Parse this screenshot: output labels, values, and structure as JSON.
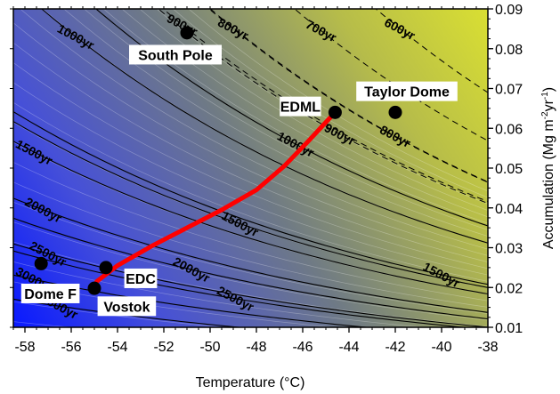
{
  "chart_data": {
    "type": "contour",
    "xlabel": "Temperature (°C)",
    "ylabel_parts": [
      "Accumulation (Mg m",
      "-2",
      "yr",
      "-1",
      ")"
    ],
    "xlim": [
      -58.5,
      -38
    ],
    "ylim": [
      0.01,
      0.09
    ],
    "x_ticks": [
      -58,
      -56,
      -54,
      -52,
      -50,
      -48,
      -46,
      -44,
      -42,
      -40,
      -38
    ],
    "x_tick_labels": [
      "-58",
      "-56",
      "-54",
      "-52",
      "-50",
      "-48",
      "-46",
      "-44",
      "-42",
      "-40",
      "-38"
    ],
    "y_ticks": [
      0.01,
      0.02,
      0.03,
      0.04,
      0.05,
      0.06,
      0.07,
      0.08,
      0.09
    ],
    "y_tick_labels": [
      "0.01",
      "0.02",
      "0.03",
      "0.04",
      "0.05",
      "0.06",
      "0.07",
      "0.08",
      "0.09"
    ],
    "background_gradient": {
      "low_color": "#0a1aff",
      "mid_color": "#6f7a85",
      "high_color": "#d8de33"
    },
    "contours": [
      {
        "label": "600yr",
        "style": "dashed",
        "label_at": [
          -41.8,
          0.085
        ]
      },
      {
        "label": "700yr",
        "style": "dashed",
        "label_at": [
          -45.2,
          0.0845
        ]
      },
      {
        "label": "800yr",
        "style": "dashed",
        "label_at": [
          -49.0,
          0.085
        ]
      },
      {
        "label": "800yr",
        "style": "dashed",
        "label_at": [
          -42.0,
          0.058
        ]
      },
      {
        "label": "900yr",
        "style": "dashed",
        "label_at": [
          -51.2,
          0.086
        ]
      },
      {
        "label": "900yr",
        "style": "dashed",
        "label_at": [
          -44.4,
          0.0585
        ]
      },
      {
        "label": "1000yr",
        "style": "solid",
        "label_at": [
          -55.8,
          0.083
        ]
      },
      {
        "label": "1000yr",
        "style": "solid",
        "label_at": [
          -46.3,
          0.056
        ]
      },
      {
        "label": "1500yr",
        "style": "solid",
        "label_at": [
          -57.6,
          0.054
        ]
      },
      {
        "label": "1500yr",
        "style": "solid",
        "label_at": [
          -48.7,
          0.036
        ]
      },
      {
        "label": "1500yr",
        "style": "solid",
        "label_at": [
          -40.0,
          0.0232
        ]
      },
      {
        "label": "2000yr",
        "style": "solid",
        "label_at": [
          -57.2,
          0.0395
        ]
      },
      {
        "label": "2000yr",
        "style": "solid",
        "label_at": [
          -50.8,
          0.0245
        ]
      },
      {
        "label": "2500yr",
        "style": "solid",
        "label_at": [
          -57.0,
          0.0285
        ]
      },
      {
        "label": "2500yr",
        "style": "solid",
        "label_at": [
          -48.9,
          0.0172
        ]
      },
      {
        "label": "3000yr",
        "style": "solid",
        "label_at": [
          -57.6,
          0.022
        ]
      },
      {
        "label": "4000yr",
        "style": "solid",
        "label_at": [
          -56.5,
          0.0153
        ]
      }
    ],
    "sites": [
      {
        "name": "South Pole",
        "x": -51.0,
        "y": 0.084,
        "label_at": [
          -51.5,
          0.0785
        ]
      },
      {
        "name": "EDML",
        "x": -44.6,
        "y": 0.064,
        "label_at": [
          -46.1,
          0.0655
        ]
      },
      {
        "name": "Taylor Dome",
        "x": -42.0,
        "y": 0.064,
        "label_at": [
          -41.5,
          0.0693
        ]
      },
      {
        "name": "EDC",
        "x": -54.5,
        "y": 0.025,
        "label_at": [
          -53.0,
          0.0223
        ]
      },
      {
        "name": "Dome F",
        "x": -57.3,
        "y": 0.026,
        "label_at": [
          -56.9,
          0.0185
        ]
      },
      {
        "name": "Vostok",
        "x": -55.0,
        "y": 0.0198,
        "label_at": [
          -53.6,
          0.0153
        ]
      }
    ],
    "trajectory": {
      "color": "#ff0000",
      "points": [
        [
          -54.9,
          0.0215
        ],
        [
          -54.0,
          0.0255
        ],
        [
          -52.5,
          0.0305
        ],
        [
          -51.0,
          0.035
        ],
        [
          -49.5,
          0.0395
        ],
        [
          -48.0,
          0.0445
        ],
        [
          -46.8,
          0.0505
        ],
        [
          -45.8,
          0.0565
        ],
        [
          -45.0,
          0.0615
        ],
        [
          -44.6,
          0.064
        ]
      ]
    }
  }
}
